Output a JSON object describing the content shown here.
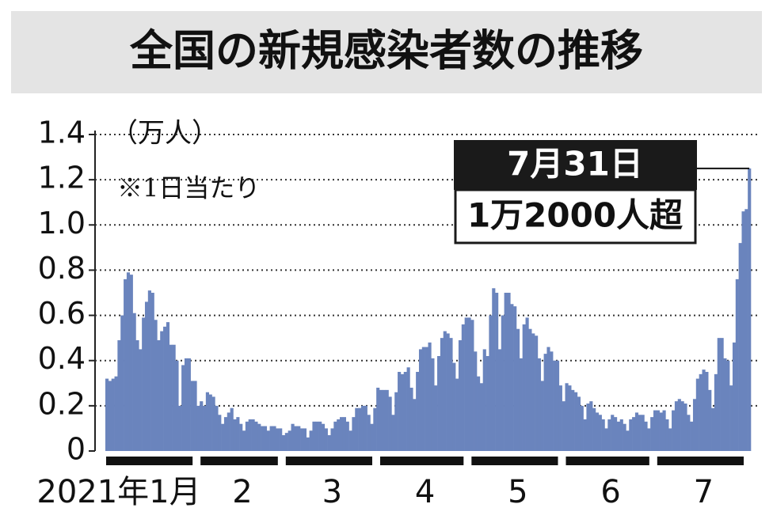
{
  "chart_data": {
    "type": "bar",
    "title": "全国の新規感染者数の推移",
    "unit_label": "（万人）",
    "note": "※1日当たり",
    "annotation": {
      "date": "7月31日",
      "text": "1万2000人超"
    },
    "color": "#6a84bd",
    "grid": true,
    "ylim": [
      0,
      1.4
    ],
    "yticks": [
      0,
      0.2,
      0.4,
      0.6,
      0.8,
      {
        "value": 1,
        "label": "1.0"
      },
      1.2,
      1.4
    ],
    "categories": [
      "2021年1月",
      "2",
      "3",
      "4",
      "5",
      "6",
      "7"
    ],
    "values": [
      [
        0.32,
        0.31,
        0.32,
        0.33,
        0.49,
        0.6,
        0.76,
        0.79,
        0.78,
        0.61,
        0.49,
        0.45,
        0.59,
        0.66,
        0.71,
        0.7,
        0.58,
        0.49,
        0.53,
        0.55,
        0.57,
        0.47,
        0.47,
        0.4,
        0.2,
        0.38,
        0.41,
        0.41,
        0.31,
        0.31,
        0.2
      ],
      [
        0.22,
        0.2,
        0.26,
        0.25,
        0.24,
        0.2,
        0.16,
        0.12,
        0.15,
        0.17,
        0.19,
        0.14,
        0.15,
        0.12,
        0.09,
        0.13,
        0.14,
        0.14,
        0.13,
        0.12,
        0.11,
        0.11,
        0.09,
        0.11,
        0.11,
        0.1,
        0.1,
        0.07
      ],
      [
        0.08,
        0.09,
        0.12,
        0.11,
        0.11,
        0.1,
        0.1,
        0.06,
        0.09,
        0.13,
        0.13,
        0.13,
        0.12,
        0.1,
        0.07,
        0.1,
        0.13,
        0.14,
        0.15,
        0.15,
        0.13,
        0.09,
        0.15,
        0.19,
        0.19,
        0.2,
        0.2,
        0.16,
        0.12,
        0.19,
        0.28
      ],
      [
        0.27,
        0.27,
        0.27,
        0.24,
        0.16,
        0.26,
        0.35,
        0.34,
        0.35,
        0.37,
        0.28,
        0.23,
        0.35,
        0.45,
        0.46,
        0.46,
        0.48,
        0.41,
        0.29,
        0.42,
        0.5,
        0.53,
        0.52,
        0.5,
        0.39,
        0.32,
        0.49,
        0.56,
        0.59,
        0.59
      ],
      [
        0.58,
        0.44,
        0.33,
        0.3,
        0.45,
        0.42,
        0.6,
        0.72,
        0.7,
        0.45,
        0.6,
        0.7,
        0.7,
        0.65,
        0.64,
        0.54,
        0.41,
        0.56,
        0.59,
        0.54,
        0.52,
        0.51,
        0.41,
        0.31,
        0.43,
        0.46,
        0.44,
        0.4,
        0.4,
        0.29,
        0.22
      ],
      [
        0.3,
        0.29,
        0.27,
        0.26,
        0.24,
        0.2,
        0.14,
        0.21,
        0.22,
        0.19,
        0.17,
        0.16,
        0.14,
        0.1,
        0.14,
        0.16,
        0.15,
        0.13,
        0.14,
        0.12,
        0.09,
        0.14,
        0.15,
        0.17,
        0.16,
        0.16,
        0.13,
        0.1,
        0.15,
        0.18
      ],
      [
        0.18,
        0.17,
        0.18,
        0.14,
        0.1,
        0.18,
        0.22,
        0.23,
        0.22,
        0.21,
        0.16,
        0.13,
        0.23,
        0.32,
        0.34,
        0.36,
        0.35,
        0.27,
        0.19,
        0.34,
        0.5,
        0.5,
        0.41,
        0.4,
        0.29,
        0.48,
        0.76,
        0.92,
        1.06,
        1.07,
        1.25
      ]
    ]
  }
}
